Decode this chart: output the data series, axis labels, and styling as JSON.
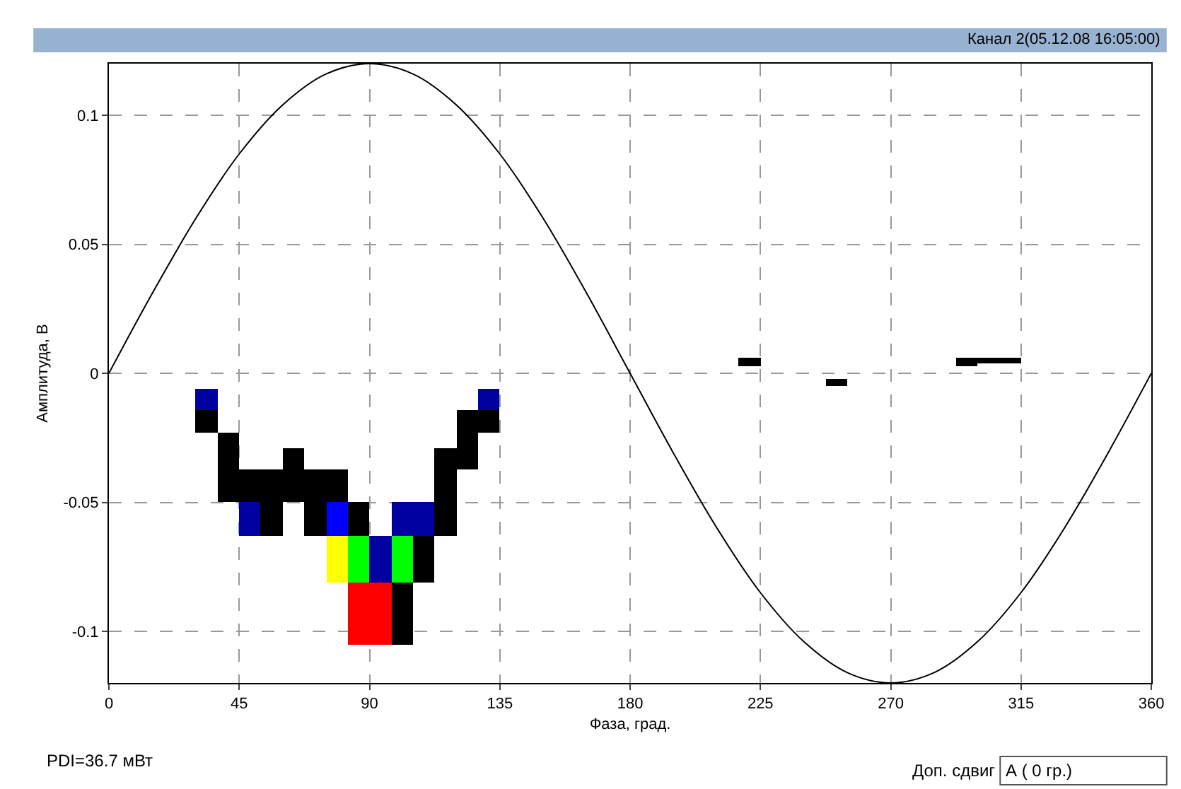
{
  "chart_data": {
    "type": "bar",
    "title": "Канал 2(05.12.08 16:05:00)",
    "xlabel": "Фаза, град.",
    "ylabel": "Амплитуда, В",
    "xlim": [
      0,
      360
    ],
    "xticks": [
      0,
      45,
      90,
      135,
      180,
      225,
      270,
      315,
      360
    ],
    "ylim": [
      -0.12,
      0.12
    ],
    "yticks": [
      -0.1,
      -0.05,
      0,
      0.05,
      0.1
    ],
    "grid": true,
    "annotations": [
      "PDI=36.7 мВт",
      "Доп. сдвиг",
      "А ( 0 гр.)"
    ],
    "series": [
      {
        "type": "line",
        "color": "#000000",
        "x": [
          0,
          15,
          30,
          45,
          60,
          75,
          90,
          105,
          120,
          135,
          150,
          165,
          180,
          195,
          210,
          225,
          240,
          255,
          270,
          285,
          300,
          315,
          330,
          345,
          360
        ],
        "values": [
          0,
          0.031,
          0.06,
          0.085,
          0.104,
          0.116,
          0.12,
          0.116,
          0.104,
          0.085,
          0.06,
          0.031,
          0,
          -0.031,
          -0.06,
          -0.085,
          -0.104,
          -0.116,
          -0.12,
          -0.116,
          -0.104,
          -0.085,
          -0.06,
          -0.031,
          0
        ]
      },
      {
        "color": "#000000",
        "x": [
          33.75,
          41.25,
          48.75,
          56.25,
          63.75,
          71.25,
          78.75,
          86.25,
          101.25,
          108.75,
          116.25,
          123.75,
          131.25,
          221.25,
          251.25,
          296.25,
          303.75,
          311.25
        ],
        "base": [
          -0.023,
          -0.05,
          -0.05,
          -0.063,
          -0.05,
          -0.063,
          -0.05,
          -0.063,
          -0.105,
          -0.081,
          -0.063,
          -0.037,
          -0.023,
          0.003,
          -0.005,
          0.003,
          0.004,
          0.004
        ],
        "values": [
          0.009,
          0.027,
          0.013,
          0.026,
          0.021,
          0.026,
          0.013,
          0.013,
          0.024,
          0.018,
          0.034,
          0.023,
          0.009,
          0.003,
          0.003,
          0.003,
          0.002,
          0.002
        ]
      },
      {
        "color": "#0000a0",
        "x": [
          33.75,
          48.75,
          93.75,
          101.25,
          108.75,
          131.25
        ],
        "base": [
          -0.014,
          -0.063,
          -0.081,
          -0.063,
          -0.063,
          -0.014
        ],
        "values": [
          0.008,
          0.013,
          0.018,
          0.013,
          0.013,
          0.008
        ]
      },
      {
        "color": "#0000ff",
        "x": [
          78.75
        ],
        "base": [
          -0.063
        ],
        "values": [
          0.013
        ]
      },
      {
        "color": "#ffff00",
        "x": [
          78.75
        ],
        "base": [
          -0.081
        ],
        "values": [
          0.018
        ]
      },
      {
        "color": "#00ff00",
        "x": [
          86.25,
          101.25
        ],
        "base": [
          -0.081,
          -0.081
        ],
        "values": [
          0.018,
          0.018
        ]
      },
      {
        "color": "#ff0000",
        "x": [
          86.25,
          93.75
        ],
        "base": [
          -0.105,
          -0.105
        ],
        "values": [
          0.024,
          0.024
        ]
      }
    ]
  }
}
